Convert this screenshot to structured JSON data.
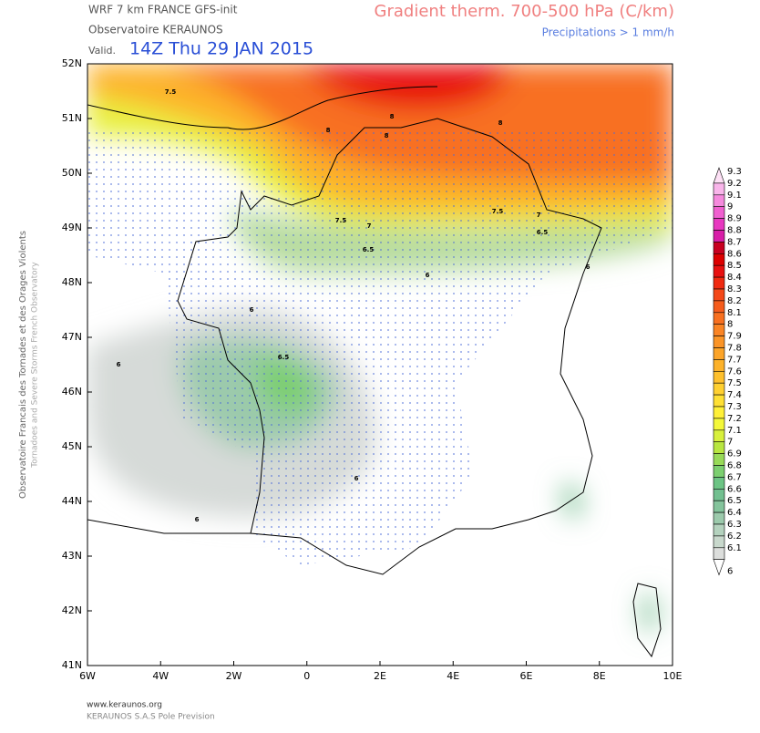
{
  "header": {
    "model": "WRF 7 km FRANCE  GFS-init",
    "observatory": "Observatoire KERAUNOS",
    "valid_prefix": "Valid.",
    "valid_time": "14Z Thu 29 JAN 2015",
    "field": "Gradient therm. 700-500 hPa (C/km)",
    "overlay": "Precipitations > 1 mm/h"
  },
  "side_text": {
    "line1": "Observatoire Francais des Tornades et des Orages Violents",
    "line2": "Tornadoes and Severe Storms French Observatory"
  },
  "footer": {
    "site": "www.keraunos.org",
    "company": "KERAUNOS S.A.S Pole Prevision"
  },
  "lat_labels": [
    "52N",
    "51N",
    "50N",
    "49N",
    "48N",
    "47N",
    "46N",
    "45N",
    "44N",
    "43N",
    "42N",
    "41N"
  ],
  "lon_labels": [
    "6W",
    "4W",
    "2W",
    "0",
    "2E",
    "4E",
    "6E",
    "8E",
    "10E"
  ],
  "contour_labels": [
    7.5,
    8,
    8,
    8,
    8,
    7.5,
    7,
    6.5,
    6,
    7.5,
    7,
    6.5,
    6,
    6,
    6.5,
    6,
    6,
    6
  ],
  "colorbar": {
    "levels": [
      9.3,
      9.2,
      9.1,
      9,
      8.9,
      8.8,
      8.7,
      8.6,
      8.5,
      8.4,
      8.3,
      8.2,
      8.1,
      8,
      7.9,
      7.8,
      7.7,
      7.6,
      7.5,
      7.4,
      7.3,
      7.2,
      7.1,
      7,
      6.9,
      6.8,
      6.7,
      6.6,
      6.5,
      6.4,
      6.3,
      6.2,
      6.1,
      6
    ],
    "colors": [
      "#fde0f5",
      "#f9b5ea",
      "#f58add",
      "#f060d0",
      "#e838c0",
      "#d81ea8",
      "#c80020",
      "#dd0000",
      "#e81010",
      "#f02a10",
      "#f44818",
      "#f65c1c",
      "#f87020",
      "#fa8424",
      "#fb9426",
      "#fca428",
      "#fdb22a",
      "#fec02c",
      "#ffd030",
      "#ffe034",
      "#fff038",
      "#f4f83a",
      "#d8f03c",
      "#b8e640",
      "#98da58",
      "#7ccf70",
      "#6cc484",
      "#72c090",
      "#84c49c",
      "#9ccaac",
      "#b4d2be",
      "#c8d8cc",
      "#dcdedc",
      "#ffffff"
    ]
  }
}
